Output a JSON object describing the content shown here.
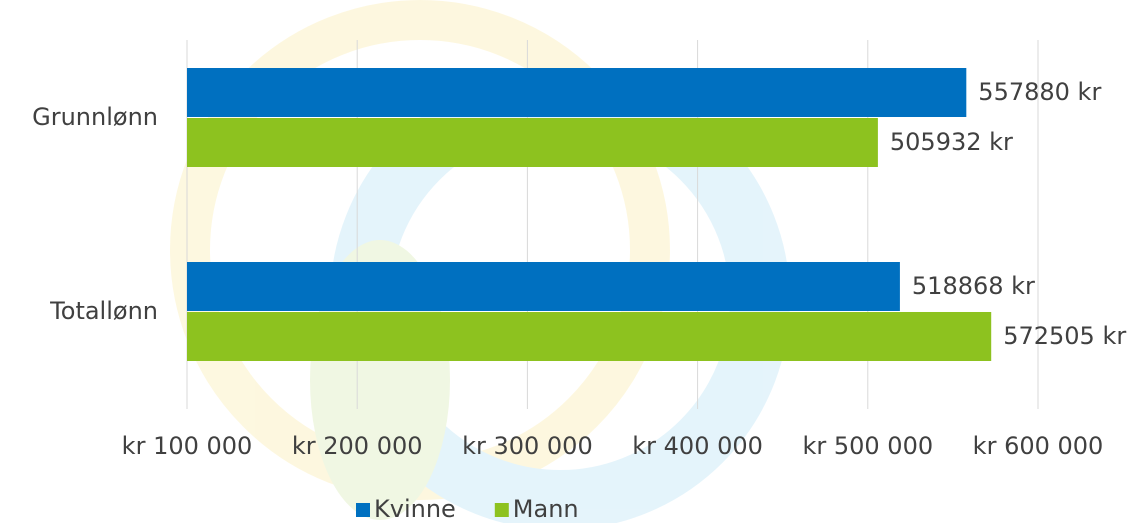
{
  "chart_data": {
    "type": "barh",
    "categories": [
      "Grunnlønn",
      "Totallønn"
    ],
    "series": [
      {
        "name": "Kvinne",
        "color": "#0070c0",
        "values": [
          557880,
          518868
        ],
        "value_labels": [
          "557880 kr",
          "518868 kr"
        ]
      },
      {
        "name": "Mann",
        "color": "#8dc21f",
        "values": [
          505932,
          572505
        ],
        "value_labels": [
          "505932 kr",
          "572505 kr"
        ]
      }
    ],
    "xlim": [
      100000,
      600000
    ],
    "xticks": [
      {
        "value": 100000,
        "label": "kr 100 000"
      },
      {
        "value": 200000,
        "label": "kr 200 000"
      },
      {
        "value": 300000,
        "label": "kr 300 000"
      },
      {
        "value": 400000,
        "label": "kr 400 000"
      },
      {
        "value": 500000,
        "label": "kr 500 000"
      },
      {
        "value": 600000,
        "label": "kr 600 000"
      }
    ],
    "grid": true,
    "legend": "bottom"
  }
}
